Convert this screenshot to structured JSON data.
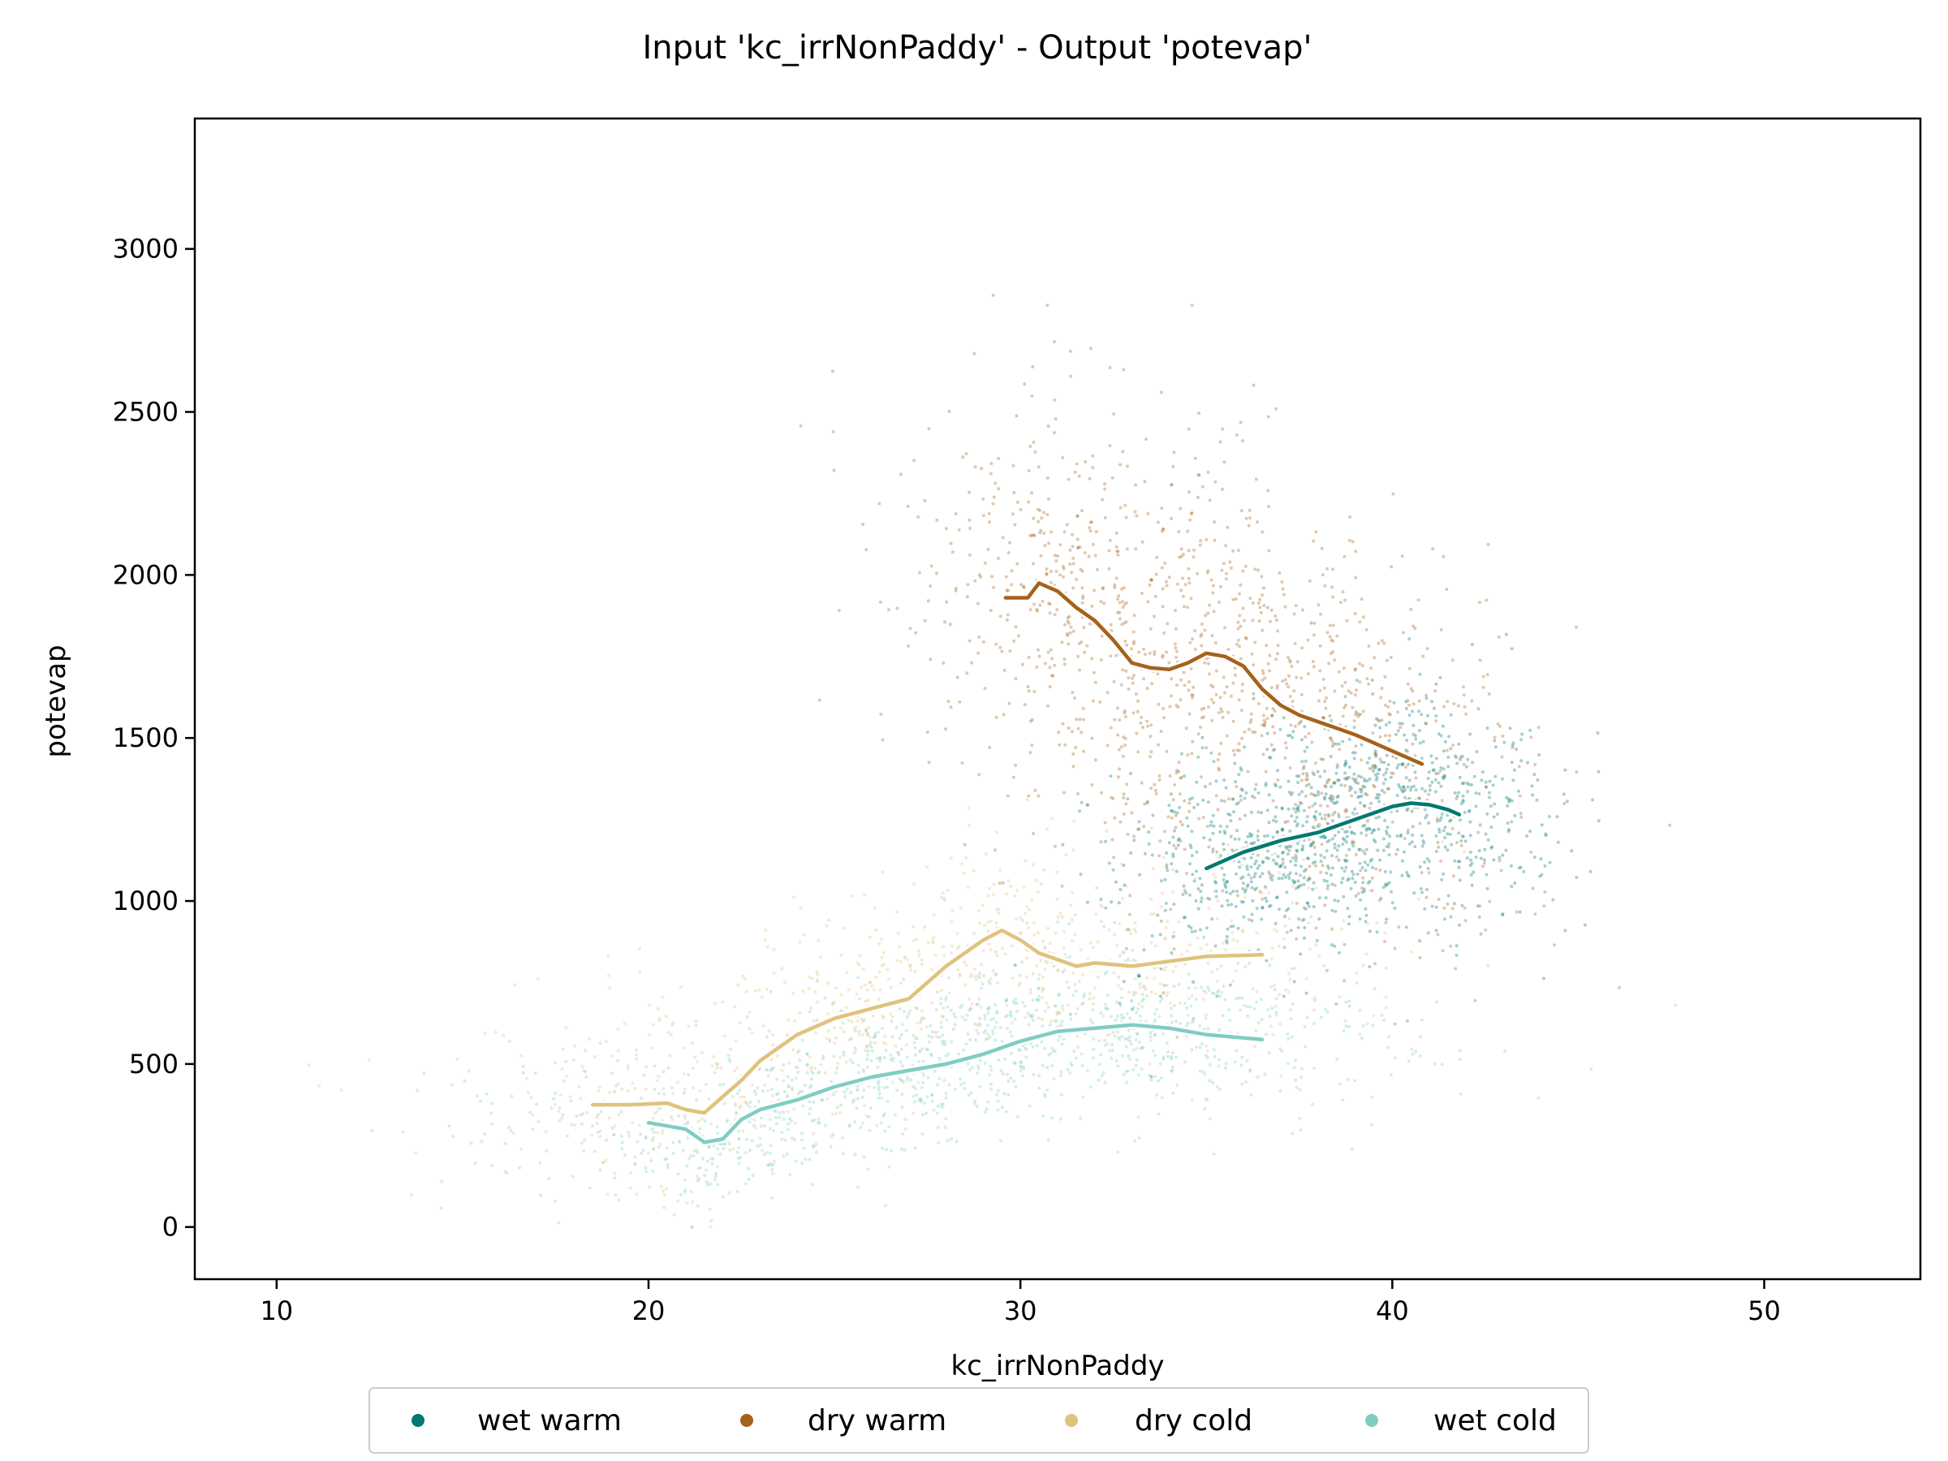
{
  "chart_data": {
    "type": "scatter",
    "title": "Input 'kc_irrNonPaddy' - Output 'potevap'",
    "xlabel": "kc_irrNonPaddy",
    "ylabel": "potevap",
    "xlim": [
      7.8,
      54.2
    ],
    "ylim": [
      -160,
      3400
    ],
    "xticks": [
      10,
      20,
      30,
      40,
      50
    ],
    "yticks": [
      0,
      500,
      1000,
      1500,
      2000,
      2500,
      3000
    ],
    "grid": false,
    "legend_position": "bottom-center",
    "series": [
      {
        "name": "wet warm",
        "color": "#01796f",
        "trend": {
          "x": [
            35,
            36,
            37,
            38,
            39,
            40,
            40.5,
            41,
            41.5,
            41.8
          ],
          "y": [
            1100,
            1150,
            1185,
            1210,
            1250,
            1290,
            1300,
            1295,
            1280,
            1265
          ]
        }
      },
      {
        "name": "dry warm",
        "color": "#a6611a",
        "trend": {
          "x": [
            29.6,
            30.2,
            30.5,
            31,
            31.5,
            32,
            32.5,
            33,
            33.5,
            34,
            34.5,
            35,
            35.5,
            36,
            36.5,
            37,
            37.5,
            38,
            39,
            40,
            40.8
          ],
          "y": [
            1930,
            1930,
            1975,
            1950,
            1900,
            1860,
            1800,
            1730,
            1715,
            1710,
            1730,
            1760,
            1750,
            1720,
            1650,
            1600,
            1570,
            1550,
            1510,
            1460,
            1420
          ]
        }
      },
      {
        "name": "dry cold",
        "color": "#dfc27d",
        "trend": {
          "x": [
            18.5,
            19.5,
            20.5,
            21,
            21.5,
            22,
            22.5,
            23,
            24,
            25,
            26,
            27,
            28,
            29,
            29.5,
            30,
            30.5,
            31,
            31.5,
            32,
            33,
            34,
            35,
            36.5
          ],
          "y": [
            375,
            375,
            380,
            360,
            350,
            400,
            450,
            510,
            590,
            640,
            670,
            700,
            800,
            880,
            910,
            880,
            840,
            820,
            800,
            810,
            800,
            815,
            830,
            835
          ]
        }
      },
      {
        "name": "wet cold",
        "color": "#80cdc1",
        "trend": {
          "x": [
            20,
            20.5,
            21,
            21.5,
            22,
            22.5,
            23,
            24,
            25,
            26,
            27,
            28,
            29,
            30,
            31,
            32,
            33,
            34,
            35,
            36.5
          ],
          "y": [
            320,
            310,
            300,
            260,
            270,
            330,
            360,
            390,
            430,
            460,
            480,
            500,
            530,
            570,
            600,
            610,
            620,
            610,
            590,
            575
          ]
        }
      }
    ]
  }
}
